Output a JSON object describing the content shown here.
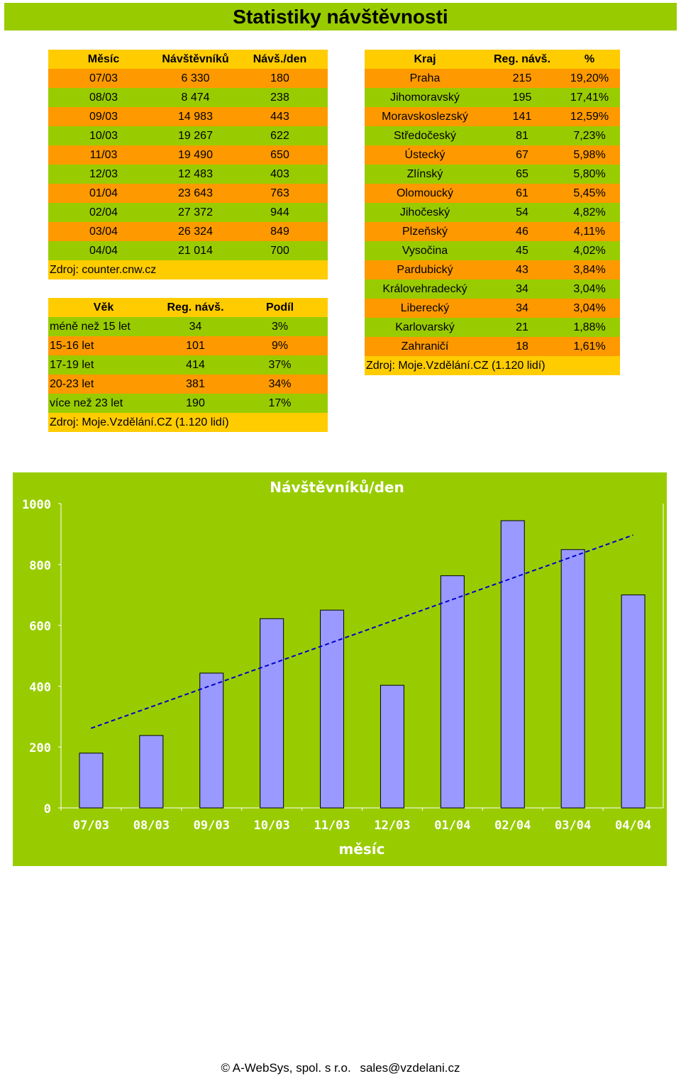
{
  "page_title": "Statistiky návštěvnosti",
  "monthly": {
    "headers": [
      "Měsíc",
      "Návštěvníků",
      "Návš./den"
    ],
    "rows": [
      [
        "07/03",
        "6 330",
        "180"
      ],
      [
        "08/03",
        "8 474",
        "238"
      ],
      [
        "09/03",
        "14 983",
        "443"
      ],
      [
        "10/03",
        "19 267",
        "622"
      ],
      [
        "11/03",
        "19 490",
        "650"
      ],
      [
        "12/03",
        "12 483",
        "403"
      ],
      [
        "01/04",
        "23 643",
        "763"
      ],
      [
        "02/04",
        "27 372",
        "944"
      ],
      [
        "03/04",
        "26 324",
        "849"
      ],
      [
        "04/04",
        "21 014",
        "700"
      ]
    ],
    "source": "Zdroj: counter.cnw.cz"
  },
  "regions": {
    "headers": [
      "Kraj",
      "Reg. návš.",
      "%"
    ],
    "rows": [
      [
        "Praha",
        "215",
        "19,20%"
      ],
      [
        "Jihomoravský",
        "195",
        "17,41%"
      ],
      [
        "Moravskoslezský",
        "141",
        "12,59%"
      ],
      [
        "Středočeský",
        "81",
        "7,23%"
      ],
      [
        "Ústecký",
        "67",
        "5,98%"
      ],
      [
        "Zlínský",
        "65",
        "5,80%"
      ],
      [
        "Olomoucký",
        "61",
        "5,45%"
      ],
      [
        "Jihočeský",
        "54",
        "4,82%"
      ],
      [
        "Plzeňský",
        "46",
        "4,11%"
      ],
      [
        "Vysočina",
        "45",
        "4,02%"
      ],
      [
        "Pardubický",
        "43",
        "3,84%"
      ],
      [
        "Královehradecký",
        "34",
        "3,04%"
      ],
      [
        "Liberecký",
        "34",
        "3,04%"
      ],
      [
        "Karlovarský",
        "21",
        "1,88%"
      ],
      [
        "Zahraničí",
        "18",
        "1,61%"
      ]
    ],
    "source": "Zdroj: Moje.Vzdělání.CZ (1.120 lidí)"
  },
  "ages": {
    "headers": [
      "Věk",
      "Reg. návš.",
      "Podíl"
    ],
    "rows": [
      [
        "méně než 15 let",
        "34",
        "3%"
      ],
      [
        "15-16 let",
        "101",
        "9%"
      ],
      [
        "17-19 let",
        "414",
        "37%"
      ],
      [
        "20-23 let",
        "381",
        "34%"
      ],
      [
        "více než 23 let",
        "190",
        "17%"
      ]
    ],
    "source": "Zdroj: Moje.Vzdělání.CZ (1.120 lidí)"
  },
  "chart_data": {
    "type": "bar",
    "title": "Návštěvníků/den",
    "xlabel": "měsíc",
    "ylabel": "",
    "categories": [
      "07/03",
      "08/03",
      "09/03",
      "10/03",
      "11/03",
      "12/03",
      "01/04",
      "02/04",
      "03/04",
      "04/04"
    ],
    "values": [
      180,
      238,
      443,
      622,
      650,
      403,
      763,
      944,
      849,
      700
    ],
    "ylim": [
      0,
      1000
    ],
    "yticks": [
      0,
      200,
      400,
      600,
      800,
      1000
    ],
    "trendline": "linear, dashed",
    "grid": false,
    "colors": {
      "background": "#99cc00",
      "bar": "#9999ff",
      "text": "#ffffff"
    }
  },
  "footer": {
    "company": "© A-WebSys, spol. s r.o.",
    "email": "sales@vzdelani.cz"
  }
}
